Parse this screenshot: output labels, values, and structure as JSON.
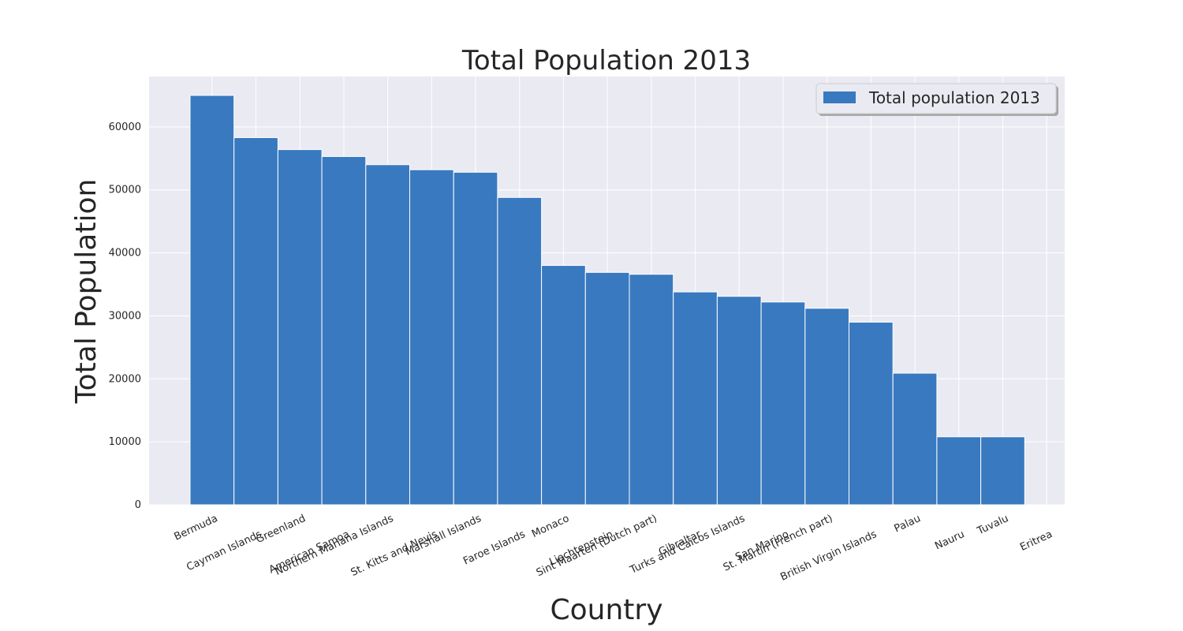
{
  "chart_data": {
    "type": "bar",
    "title": "Total Population 2013",
    "xlabel": "Country",
    "ylabel": "Total Population",
    "ylim": [
      0,
      68000
    ],
    "yticks": [
      0,
      10000,
      20000,
      30000,
      40000,
      50000,
      60000
    ],
    "grid": true,
    "legend_position": "top-right",
    "categories": [
      "Bermuda",
      "Cayman Islands",
      "Greenland",
      "American Samoa",
      "Northern Mariana Islands",
      "St. Kitts and Nevis",
      "Marshall Islands",
      "Faroe Islands",
      "Monaco",
      "Liechtenstein",
      "Sint Maarten (Dutch part)",
      "Gibraltar",
      "Turks and Caicos Islands",
      "San Marino",
      "St. Martin (French part)",
      "British Virgin Islands",
      "Palau",
      "Nauru",
      "Tuvalu",
      "Eritrea"
    ],
    "series": [
      {
        "name": "Total population 2013",
        "color": "#3979c0",
        "values": [
          65000,
          58300,
          56400,
          55300,
          54000,
          53200,
          52800,
          48800,
          38000,
          36900,
          36600,
          33800,
          33100,
          32200,
          31200,
          29000,
          20900,
          10800,
          10800,
          0
        ]
      }
    ]
  }
}
